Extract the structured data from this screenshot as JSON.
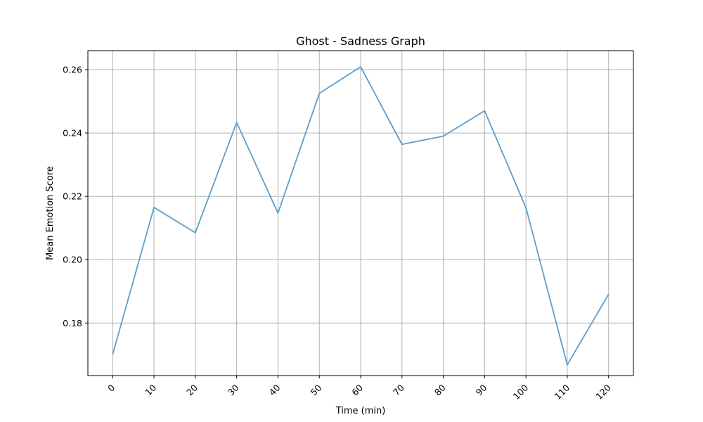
{
  "chart_data": {
    "type": "line",
    "title": "Ghost - Sadness Graph",
    "xlabel": "Time (min)",
    "ylabel": "Mean Emotion Score",
    "x": [
      0,
      10,
      20,
      30,
      40,
      50,
      60,
      70,
      80,
      90,
      100,
      110,
      120
    ],
    "series": [
      {
        "values": [
          0.1701,
          0.2165,
          0.2085,
          0.2433,
          0.2147,
          0.2525,
          0.2609,
          0.2364,
          0.239,
          0.247,
          0.2164,
          0.1668,
          0.1891
        ]
      }
    ],
    "xlim": [
      -6,
      126
    ],
    "ylim": [
      0.1634,
      0.266
    ],
    "xticks": [
      "0",
      "10",
      "20",
      "30",
      "40",
      "50",
      "60",
      "70",
      "80",
      "90",
      "100",
      "110",
      "120"
    ],
    "yticks": [
      "0.18",
      "0.20",
      "0.22",
      "0.24",
      "0.26"
    ],
    "ytick_values": [
      0.18,
      0.2,
      0.22,
      0.24,
      0.26
    ],
    "grid": true,
    "line_color": "#5b9ec9",
    "grid_color": "#b0b0b0"
  }
}
